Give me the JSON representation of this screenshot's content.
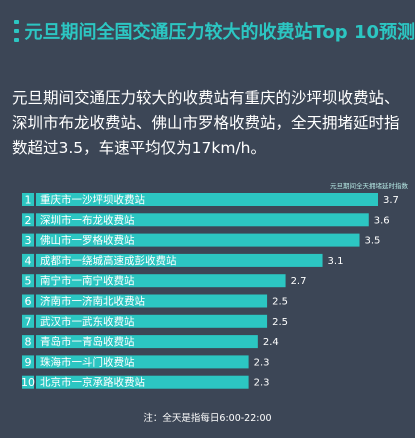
{
  "header": {
    "title": "元旦期间全国交通压力较大的收费站Top 10预测"
  },
  "intro_text": "元旦期间交通压力较大的收费站有重庆的沙坪坝收费站、深圳市布龙收费站、佛山市罗格收费站，全天拥堵延时指数超过3.5，车速平均仅为17km/h。",
  "footnote": "注：全天是指每日6:00-22:00",
  "colors": {
    "background": "#3c4656",
    "accent": "#2cc6c2",
    "bar": "#2cc6c2",
    "rank_box": "#2cc6c2"
  },
  "chart_data": {
    "type": "bar",
    "orientation": "horizontal",
    "legend_label": "元旦期间全天拥堵延时指数",
    "ranks": [
      "1",
      "2",
      "3",
      "4",
      "5",
      "6",
      "7",
      "8",
      "9",
      "10"
    ],
    "categories": [
      "重庆市一沙坪坝收费站",
      "深圳市一布龙收费站",
      "佛山市一罗格收费站",
      "成都市一绕城高速成彭收费站",
      "南宁市一南宁收费站",
      "济南市一济南北收费站",
      "武汉市一武东收费站",
      "青岛市一青岛收费站",
      "珠海市一斗门收费站",
      "北京市一京承路收费站"
    ],
    "values": [
      3.7,
      3.6,
      3.5,
      3.1,
      2.7,
      2.5,
      2.5,
      2.4,
      2.3,
      2.3
    ],
    "value_labels": [
      "3.7",
      "3.6",
      "3.5",
      "3.1",
      "2.7",
      "2.5",
      "2.5",
      "2.4",
      "2.3",
      "2.3"
    ],
    "xlim": [
      0,
      3.7
    ],
    "grid": false
  }
}
